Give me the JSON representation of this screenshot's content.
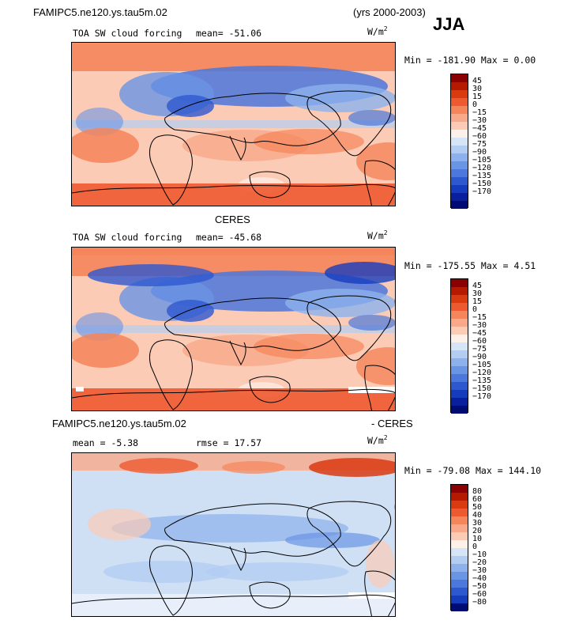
{
  "header": {
    "case_name": "FAMIPC5.ne120.ys.tau5m.02",
    "years": "(yrs 2000-2003)",
    "season": "JJA"
  },
  "colors": {
    "model_palette": [
      "#8b0000",
      "#b51a00",
      "#d93a10",
      "#ee5a30",
      "#f5855a",
      "#f9a98a",
      "#fbcbb6",
      "#fdf0e8",
      "#d6e4f7",
      "#b3cdf2",
      "#8cb1ec",
      "#6a94e4",
      "#4c77dc",
      "#2e58cf",
      "#163cbe",
      "#0a1f9e",
      "#000b73"
    ],
    "diff_palette": [
      "#8b0000",
      "#b51a00",
      "#d93a10",
      "#ee5a30",
      "#f5855a",
      "#f9a98a",
      "#fbcbb6",
      "#fdf0e8",
      "#d6e4f7",
      "#b3cdf2",
      "#8cb1ec",
      "#6a94e4",
      "#4c77dc",
      "#2e58cf",
      "#163cbe",
      "#000b73"
    ]
  },
  "panels": {
    "model": {
      "field": "TOA SW cloud forcing",
      "mean_label": "mean=",
      "mean_value": "-51.06",
      "units": "W/m",
      "units_sup": "2",
      "minmax": "Min = -181.90 Max =   0.00"
    },
    "obs": {
      "title": "CERES",
      "field": "TOA SW cloud forcing",
      "mean_label": "mean=",
      "mean_value": "-45.68",
      "units": "W/m",
      "units_sup": "2",
      "minmax": "Min = -175.55 Max =   4.51"
    },
    "diff": {
      "title_left": "FAMIPC5.ne120.ys.tau5m.02",
      "title_right": "- CERES",
      "mean_label": "mean =",
      "mean_value": "-5.38",
      "rmse_label": "rmse =",
      "rmse_value": "17.57",
      "units": "W/m",
      "units_sup": "2",
      "minmax": "Min = -79.08 Max = 144.10"
    }
  },
  "chart_data": [
    {
      "type": "heatmap",
      "title": "TOA SW cloud forcing",
      "subtitle": "FAMIPC5.ne120.ys.tau5m.02",
      "mean": -51.06,
      "min": -181.9,
      "max": 0.0,
      "units": "W/m2",
      "colorbar_levels": [
        45,
        30,
        15,
        0,
        -15,
        -30,
        -45,
        -60,
        -75,
        -90,
        -105,
        -120,
        -135,
        -150,
        -170
      ]
    },
    {
      "type": "heatmap",
      "title": "TOA SW cloud forcing",
      "subtitle": "CERES",
      "mean": -45.68,
      "min": -175.55,
      "max": 4.51,
      "units": "W/m2",
      "colorbar_levels": [
        45,
        30,
        15,
        0,
        -15,
        -30,
        -45,
        -60,
        -75,
        -90,
        -105,
        -120,
        -135,
        -150,
        -170
      ]
    },
    {
      "type": "heatmap",
      "title": "FAMIPC5.ne120.ys.tau5m.02 - CERES",
      "mean": -5.38,
      "rmse": 17.57,
      "min": -79.08,
      "max": 144.1,
      "units": "W/m2",
      "colorbar_levels": [
        80,
        60,
        50,
        40,
        30,
        20,
        10,
        0,
        -10,
        -20,
        -30,
        -40,
        -50,
        -60,
        -80
      ]
    }
  ]
}
